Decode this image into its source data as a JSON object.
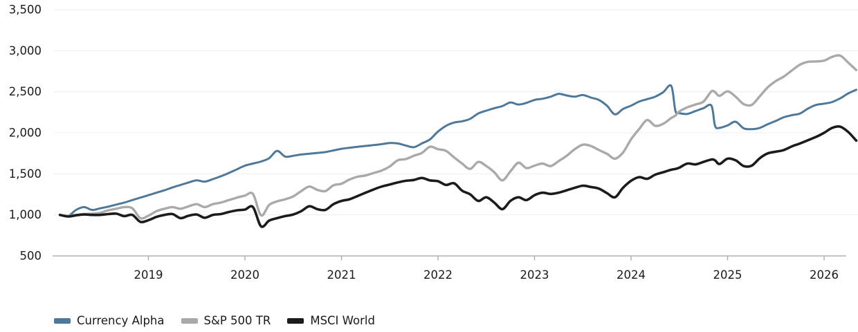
{
  "chart_data": {
    "type": "line",
    "title": "",
    "xlabel": "",
    "ylabel": "",
    "xlim": [
      2018.0,
      2026.35
    ],
    "ylim": [
      500,
      3500
    ],
    "grid": "horizontal",
    "legend_position": "bottom-left",
    "x_tick_labels": [
      "2019",
      "2020",
      "2021",
      "2022",
      "2023",
      "2024",
      "2025",
      "2026"
    ],
    "x_ticks": [
      2019,
      2020,
      2021,
      2022,
      2023,
      2024,
      2025,
      2026
    ],
    "y_tick_labels": [
      "500",
      "1,000",
      "1,500",
      "2,000",
      "2,500",
      "3,000",
      "3,500"
    ],
    "y_ticks": [
      500,
      1000,
      1500,
      2000,
      2500,
      3000,
      3500
    ],
    "colors": {
      "background": "#ffffff",
      "gridline": "#ececec",
      "axis": "#b0b0b0",
      "text": "#1a1a1a"
    },
    "x": [
      2018.083,
      2018.167,
      2018.25,
      2018.333,
      2018.417,
      2018.5,
      2018.583,
      2018.667,
      2018.75,
      2018.833,
      2018.917,
      2019.0,
      2019.083,
      2019.167,
      2019.25,
      2019.333,
      2019.417,
      2019.5,
      2019.583,
      2019.667,
      2019.75,
      2019.833,
      2019.917,
      2020.0,
      2020.083,
      2020.167,
      2020.25,
      2020.333,
      2020.417,
      2020.5,
      2020.583,
      2020.667,
      2020.75,
      2020.833,
      2020.917,
      2021.0,
      2021.083,
      2021.167,
      2021.25,
      2021.333,
      2021.417,
      2021.5,
      2021.583,
      2021.667,
      2021.75,
      2021.833,
      2021.917,
      2022.0,
      2022.083,
      2022.167,
      2022.25,
      2022.333,
      2022.417,
      2022.5,
      2022.583,
      2022.667,
      2022.75,
      2022.833,
      2022.917,
      2023.0,
      2023.083,
      2023.167,
      2023.25,
      2023.333,
      2023.417,
      2023.5,
      2023.583,
      2023.667,
      2023.75,
      2023.833,
      2023.917,
      2024.0,
      2024.083,
      2024.167,
      2024.25,
      2024.333,
      2024.417,
      2024.46,
      2024.5,
      2024.583,
      2024.667,
      2024.75,
      2024.833,
      2024.87,
      2024.917,
      2025.0,
      2025.083,
      2025.167,
      2025.25,
      2025.333,
      2025.417,
      2025.5,
      2025.583,
      2025.667,
      2025.75,
      2025.833,
      2025.917,
      2026.0,
      2026.083,
      2026.167,
      2026.25,
      2026.333
    ],
    "series": [
      {
        "name": "Currency Alpha",
        "color": "#4d7899",
        "stroke_width": 3,
        "values": [
          1000,
          985,
          1060,
          1095,
          1060,
          1080,
          1100,
          1125,
          1150,
          1180,
          1210,
          1240,
          1270,
          1300,
          1335,
          1365,
          1395,
          1420,
          1405,
          1435,
          1470,
          1510,
          1555,
          1600,
          1625,
          1650,
          1690,
          1780,
          1710,
          1720,
          1735,
          1745,
          1755,
          1765,
          1785,
          1805,
          1818,
          1830,
          1840,
          1850,
          1862,
          1875,
          1870,
          1845,
          1825,
          1870,
          1920,
          2015,
          2085,
          2125,
          2140,
          2170,
          2235,
          2270,
          2300,
          2325,
          2370,
          2345,
          2365,
          2400,
          2415,
          2440,
          2475,
          2455,
          2440,
          2460,
          2430,
          2400,
          2330,
          2225,
          2290,
          2330,
          2380,
          2410,
          2440,
          2495,
          2570,
          2265,
          2240,
          2230,
          2265,
          2300,
          2330,
          2085,
          2060,
          2090,
          2135,
          2055,
          2045,
          2060,
          2105,
          2145,
          2190,
          2215,
          2235,
          2295,
          2340,
          2355,
          2375,
          2420,
          2480,
          2525
        ]
      },
      {
        "name": "S&P 500 TR",
        "color": "#a9a9a9",
        "stroke_width": 3.4,
        "values": [
          1000,
          990,
          1000,
          1010,
          1015,
          1025,
          1055,
          1075,
          1095,
          1080,
          960,
          990,
          1045,
          1075,
          1095,
          1075,
          1105,
          1130,
          1095,
          1130,
          1150,
          1180,
          1210,
          1235,
          1255,
          995,
          1120,
          1165,
          1190,
          1225,
          1290,
          1345,
          1305,
          1290,
          1360,
          1380,
          1430,
          1465,
          1480,
          1510,
          1540,
          1590,
          1665,
          1680,
          1720,
          1755,
          1830,
          1800,
          1780,
          1700,
          1625,
          1560,
          1645,
          1595,
          1520,
          1420,
          1530,
          1635,
          1570,
          1600,
          1625,
          1595,
          1655,
          1720,
          1800,
          1855,
          1840,
          1790,
          1745,
          1685,
          1760,
          1920,
          2045,
          2155,
          2085,
          2110,
          2180,
          2210,
          2260,
          2310,
          2345,
          2380,
          2505,
          2495,
          2450,
          2505,
          2440,
          2350,
          2340,
          2445,
          2555,
          2630,
          2685,
          2760,
          2830,
          2865,
          2870,
          2880,
          2925,
          2940,
          2855,
          2765
        ]
      },
      {
        "name": "MSCI World",
        "color": "#1b1b1b",
        "stroke_width": 3.6,
        "values": [
          1000,
          980,
          995,
          1005,
          1000,
          1000,
          1010,
          1015,
          985,
          1000,
          915,
          935,
          975,
          1000,
          1010,
          960,
          990,
          1005,
          965,
          1000,
          1010,
          1035,
          1055,
          1065,
          1095,
          860,
          930,
          960,
          985,
          1005,
          1045,
          1105,
          1070,
          1060,
          1130,
          1170,
          1190,
          1230,
          1270,
          1310,
          1345,
          1370,
          1395,
          1415,
          1425,
          1450,
          1420,
          1410,
          1365,
          1385,
          1295,
          1250,
          1170,
          1215,
          1150,
          1070,
          1170,
          1215,
          1180,
          1240,
          1270,
          1255,
          1270,
          1300,
          1330,
          1355,
          1340,
          1320,
          1265,
          1215,
          1330,
          1415,
          1460,
          1440,
          1490,
          1520,
          1550,
          1560,
          1575,
          1625,
          1615,
          1645,
          1675,
          1665,
          1620,
          1685,
          1665,
          1595,
          1600,
          1690,
          1750,
          1770,
          1790,
          1835,
          1870,
          1910,
          1950,
          2000,
          2060,
          2075,
          2010,
          1905
        ]
      }
    ]
  }
}
